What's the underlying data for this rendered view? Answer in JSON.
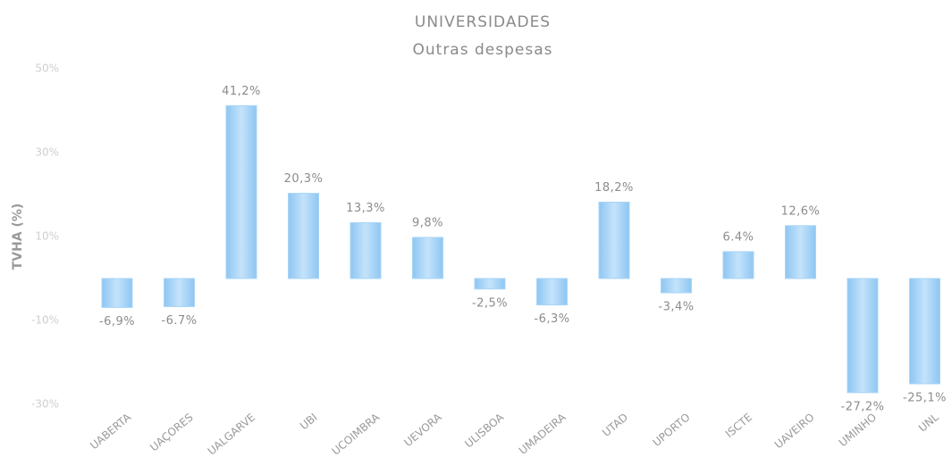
{
  "chart_data": {
    "type": "bar",
    "title": "UNIVERSIDADES",
    "subtitle": "Outras despesas",
    "y_label": "TVHA (%)",
    "categories": [
      "UABERTA",
      "UAÇORES",
      "UALGARVE",
      "UBI",
      "UCOIMBRA",
      "UEVORA",
      "ULISBOA",
      "UMADEIRA",
      "UTAD",
      "UPORTO",
      "ISCTE",
      "UAVEIRO",
      "UMINHO",
      "UNL"
    ],
    "values": [
      -6.9,
      -6.7,
      41.2,
      20.3,
      13.3,
      9.8,
      -2.5,
      -6.3,
      18.2,
      -3.4,
      6.4,
      12.6,
      -27.2,
      -25.1
    ],
    "value_labels": [
      "-6,9%",
      "-6.7%",
      "41,2%",
      "20,3%",
      "13,3%",
      "9,8%",
      "-2,5%",
      "-6,3%",
      "18,2%",
      "-3,4%",
      "6.4%",
      "12,6%",
      "-27,2%",
      "-25,1%"
    ],
    "color": "#a9d5f7",
    "ylim": [
      -30,
      50
    ],
    "yticks": [
      {
        "value": 50,
        "label": "50%"
      },
      {
        "value": 30,
        "label": "30%"
      },
      {
        "value": 10,
        "label": "10%"
      },
      {
        "value": -10,
        "label": "-10%"
      },
      {
        "value": -30,
        "label": "-30%"
      }
    ],
    "grid": false
  }
}
